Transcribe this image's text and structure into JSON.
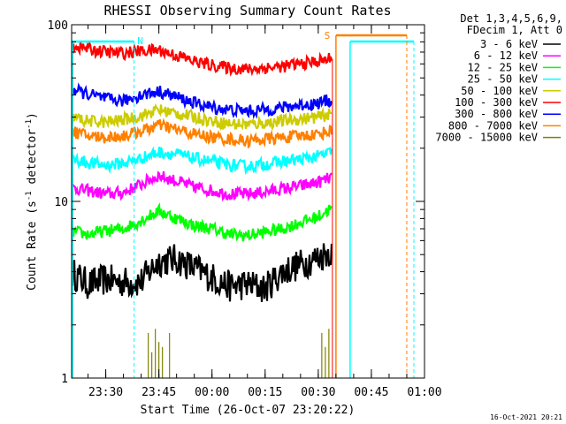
{
  "chart_data": {
    "type": "line",
    "title": "RHESSI Observing Summary Count Rates",
    "xlabel": "Start Time (26-Oct-07 23:20:22)",
    "ylabel": "Count Rate (s",
    "ylabel_sup": "-1",
    "ylabel_tail": " detector",
    "ylabel_close": ")",
    "y_scale": "log",
    "ylim": [
      1,
      100
    ],
    "xlim": [
      "23:20:22",
      "01:00:00"
    ],
    "x_ticks": [
      "23:30",
      "23:45",
      "00:00",
      "00:15",
      "00:30",
      "00:45",
      "01:00"
    ],
    "y_ticks": [
      "1",
      "10",
      "100"
    ],
    "legend_header": [
      "Det 1,3,4,5,6,9,",
      "FDecim 1, Att 0"
    ],
    "legend_position": "top-right",
    "timestamp": "16-Oct-2021 20:21",
    "series": [
      {
        "name": "3 - 6 keV",
        "color": "#000000",
        "x": [
          "23:20",
          "23:25",
          "23:30",
          "23:35",
          "23:40",
          "23:45",
          "23:50",
          "23:55",
          "00:00",
          "00:05",
          "00:10",
          "00:15",
          "00:20",
          "00:25",
          "00:30",
          "00:33",
          "00:34"
        ],
        "values": [
          4.0,
          3.4,
          3.6,
          3.5,
          3.5,
          4.6,
          4.7,
          4.2,
          3.7,
          3.3,
          3.4,
          3.2,
          4.0,
          4.4,
          4.8,
          5.2,
          5.2
        ]
      },
      {
        "name": "6 - 12 keV",
        "color": "#ff00ff",
        "x": [
          "23:20",
          "23:25",
          "23:30",
          "23:35",
          "23:40",
          "23:45",
          "23:50",
          "23:55",
          "00:00",
          "00:05",
          "00:10",
          "00:15",
          "00:20",
          "00:25",
          "00:30",
          "00:33",
          "00:34"
        ],
        "values": [
          12.0,
          11.5,
          11.0,
          11.2,
          12.5,
          14.0,
          13.0,
          12.0,
          11.5,
          11.0,
          11.0,
          11.3,
          11.8,
          12.2,
          12.8,
          13.5,
          13.5
        ]
      },
      {
        "name": "12 - 25 keV",
        "color": "#00ff00",
        "x": [
          "23:20",
          "23:25",
          "23:30",
          "23:35",
          "23:40",
          "23:45",
          "23:50",
          "23:55",
          "00:00",
          "00:05",
          "00:10",
          "00:15",
          "00:20",
          "00:25",
          "00:30",
          "00:33",
          "00:34"
        ],
        "values": [
          6.8,
          6.5,
          6.8,
          7.0,
          7.8,
          8.8,
          8.0,
          7.3,
          7.0,
          6.5,
          6.4,
          6.7,
          7.0,
          7.6,
          8.2,
          9.0,
          9.0
        ]
      },
      {
        "name": "25 - 50 keV",
        "color": "#00ffff",
        "x": [
          "23:20",
          "23:25",
          "23:30",
          "23:35",
          "23:40",
          "23:45",
          "23:50",
          "23:55",
          "00:00",
          "00:05",
          "00:10",
          "00:15",
          "00:20",
          "00:25",
          "00:30",
          "00:33",
          "00:34"
        ],
        "values": [
          17.5,
          16.5,
          16.0,
          16.5,
          17.5,
          19.0,
          18.5,
          17.5,
          16.8,
          16.0,
          15.8,
          16.2,
          16.8,
          17.3,
          18.0,
          18.8,
          18.8
        ]
      },
      {
        "name": "50 - 100 keV",
        "color": "#cccc00",
        "x": [
          "23:20",
          "23:25",
          "23:30",
          "23:35",
          "23:40",
          "23:45",
          "23:50",
          "23:55",
          "00:00",
          "00:05",
          "00:10",
          "00:15",
          "00:20",
          "00:25",
          "00:30",
          "00:33",
          "00:34"
        ],
        "values": [
          30.0,
          28.5,
          28.0,
          29.0,
          30.5,
          33.0,
          31.5,
          30.0,
          28.5,
          27.5,
          27.3,
          27.8,
          28.5,
          29.3,
          30.0,
          31.0,
          31.0
        ]
      },
      {
        "name": "100 - 300 keV",
        "color": "#ff0000",
        "x": [
          "23:20",
          "23:25",
          "23:30",
          "23:35",
          "23:40",
          "23:45",
          "23:50",
          "23:55",
          "00:00",
          "00:05",
          "00:10",
          "00:15",
          "00:20",
          "00:25",
          "00:30",
          "00:33",
          "00:34"
        ],
        "values": [
          77.0,
          73.0,
          70.0,
          69.0,
          71.0,
          72.0,
          67.0,
          62.0,
          59.0,
          57.0,
          56.0,
          57.0,
          58.0,
          60.0,
          62.0,
          64.0,
          64.0
        ]
      },
      {
        "name": "300 - 800 keV",
        "color": "#0000ff",
        "x": [
          "23:20",
          "23:25",
          "23:30",
          "23:35",
          "23:40",
          "23:45",
          "23:50",
          "23:55",
          "00:00",
          "00:05",
          "00:10",
          "00:15",
          "00:20",
          "00:25",
          "00:30",
          "00:33",
          "00:34"
        ],
        "values": [
          43.0,
          40.5,
          38.0,
          37.0,
          40.0,
          42.0,
          39.0,
          36.0,
          34.0,
          33.0,
          32.5,
          33.0,
          34.0,
          35.0,
          36.0,
          37.5,
          37.5
        ]
      },
      {
        "name": "800 - 7000 keV",
        "color": "#ff8000",
        "x": [
          "23:20",
          "23:25",
          "23:30",
          "23:35",
          "23:40",
          "23:45",
          "23:50",
          "23:55",
          "00:00",
          "00:05",
          "00:10",
          "00:15",
          "00:20",
          "00:25",
          "00:30",
          "00:33",
          "00:34"
        ],
        "values": [
          25.0,
          23.5,
          23.0,
          23.5,
          25.0,
          27.0,
          25.5,
          24.0,
          23.0,
          22.5,
          22.0,
          22.5,
          23.0,
          23.5,
          24.0,
          25.0,
          25.0
        ]
      },
      {
        "name": "7000 - 15000 keV",
        "color": "#808000",
        "x": [
          "23:42",
          "23:43",
          "23:44",
          "23:45",
          "23:46",
          "23:48",
          "00:31",
          "00:32",
          "00:33"
        ],
        "values": [
          1.8,
          1.4,
          1.9,
          1.6,
          1.5,
          1.8,
          1.8,
          1.5,
          1.9
        ]
      }
    ],
    "annotations": [
      {
        "label": "N",
        "color": "#00ffff",
        "x": "23:38"
      },
      {
        "label": "S",
        "color": "#ff8000",
        "x": "00:35"
      }
    ]
  }
}
